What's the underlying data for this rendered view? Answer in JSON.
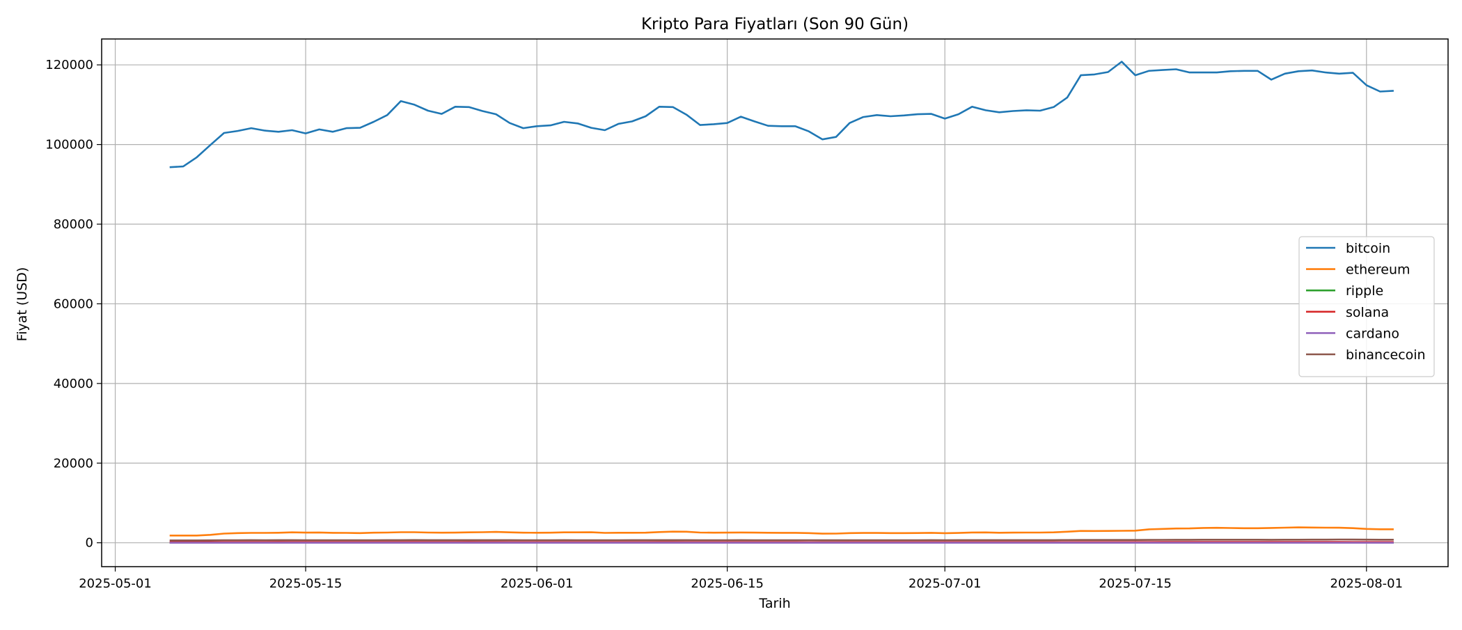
{
  "chart_data": {
    "type": "line",
    "title": "Kripto Para Fiyatları (Son 90 Gün)",
    "xlabel": "Tarih",
    "ylabel": "Fiyat (USD)",
    "x_ticks": [
      "2025-05-01",
      "2025-05-15",
      "2025-06-01",
      "2025-06-15",
      "2025-07-01",
      "2025-07-15",
      "2025-08-01"
    ],
    "y_ticks": [
      0,
      20000,
      40000,
      60000,
      80000,
      100000,
      120000
    ],
    "xlim": [
      "2025-04-30",
      "2025-08-07"
    ],
    "ylim": [
      -6000,
      126500
    ],
    "grid": true,
    "legend_position": "center-right",
    "dates": [
      "2025-05-05",
      "2025-05-06",
      "2025-05-07",
      "2025-05-08",
      "2025-05-09",
      "2025-05-10",
      "2025-05-11",
      "2025-05-12",
      "2025-05-13",
      "2025-05-14",
      "2025-05-15",
      "2025-05-16",
      "2025-05-17",
      "2025-05-18",
      "2025-05-19",
      "2025-05-20",
      "2025-05-21",
      "2025-05-22",
      "2025-05-23",
      "2025-05-24",
      "2025-05-25",
      "2025-05-26",
      "2025-05-27",
      "2025-05-28",
      "2025-05-29",
      "2025-05-30",
      "2025-05-31",
      "2025-06-01",
      "2025-06-02",
      "2025-06-03",
      "2025-06-04",
      "2025-06-05",
      "2025-06-06",
      "2025-06-07",
      "2025-06-08",
      "2025-06-09",
      "2025-06-10",
      "2025-06-11",
      "2025-06-12",
      "2025-06-13",
      "2025-06-14",
      "2025-06-15",
      "2025-06-16",
      "2025-06-17",
      "2025-06-18",
      "2025-06-19",
      "2025-06-20",
      "2025-06-21",
      "2025-06-22",
      "2025-06-23",
      "2025-06-24",
      "2025-06-25",
      "2025-06-26",
      "2025-06-27",
      "2025-06-28",
      "2025-06-29",
      "2025-06-30",
      "2025-07-01",
      "2025-07-02",
      "2025-07-03",
      "2025-07-04",
      "2025-07-05",
      "2025-07-06",
      "2025-07-07",
      "2025-07-08",
      "2025-07-09",
      "2025-07-10",
      "2025-07-11",
      "2025-07-12",
      "2025-07-13",
      "2025-07-14",
      "2025-07-15",
      "2025-07-16",
      "2025-07-17",
      "2025-07-18",
      "2025-07-19",
      "2025-07-20",
      "2025-07-21",
      "2025-07-22",
      "2025-07-23",
      "2025-07-24",
      "2025-07-25",
      "2025-07-26",
      "2025-07-27",
      "2025-07-28",
      "2025-07-29",
      "2025-07-30",
      "2025-07-31",
      "2025-08-01",
      "2025-08-02",
      "2025-08-03"
    ],
    "series": [
      {
        "name": "bitcoin",
        "color": "#1f77b4",
        "values": [
          94300,
          94500,
          96800,
          99900,
          102900,
          103400,
          104100,
          103500,
          103200,
          103600,
          102800,
          103800,
          103200,
          104100,
          104200,
          105700,
          107400,
          110900,
          110000,
          108500,
          107700,
          109500,
          109400,
          108400,
          107600,
          105400,
          104100,
          104600,
          104800,
          105700,
          105300,
          104200,
          103600,
          105200,
          105800,
          107100,
          109500,
          109400,
          107500,
          104900,
          105100,
          105400,
          107000,
          105800,
          104700,
          104600,
          104600,
          103300,
          101300,
          101900,
          105400,
          106900,
          107400,
          107100,
          107300,
          107600,
          107700,
          106500,
          107600,
          109500,
          108600,
          108100,
          108400,
          108600,
          108500,
          109400,
          111800,
          117400,
          117600,
          118200,
          120800,
          117400,
          118500,
          118700,
          118900,
          118100,
          118100,
          118100,
          118400,
          118500,
          118500,
          116300,
          117800,
          118400,
          118600,
          118100,
          117800,
          118000,
          114900,
          113300,
          113500
        ]
      },
      {
        "name": "ethereum",
        "color": "#ff7f0e",
        "values": [
          1820,
          1810,
          1820,
          1980,
          2300,
          2420,
          2480,
          2480,
          2520,
          2610,
          2550,
          2590,
          2500,
          2470,
          2420,
          2530,
          2560,
          2650,
          2660,
          2570,
          2530,
          2550,
          2620,
          2660,
          2730,
          2610,
          2530,
          2510,
          2530,
          2610,
          2620,
          2630,
          2480,
          2520,
          2510,
          2530,
          2680,
          2800,
          2770,
          2570,
          2530,
          2540,
          2580,
          2540,
          2510,
          2500,
          2500,
          2420,
          2280,
          2300,
          2430,
          2460,
          2460,
          2420,
          2430,
          2440,
          2500,
          2410,
          2460,
          2580,
          2600,
          2510,
          2550,
          2560,
          2560,
          2620,
          2780,
          2970,
          2950,
          2960,
          3000,
          3030,
          3370,
          3480,
          3580,
          3590,
          3720,
          3760,
          3710,
          3650,
          3650,
          3720,
          3790,
          3860,
          3830,
          3790,
          3780,
          3660,
          3470,
          3390,
          3380
        ]
      },
      {
        "name": "ripple",
        "color": "#2ca02c",
        "values": [
          2.1,
          2.1,
          2.1,
          2.3,
          2.4,
          2.4,
          2.4,
          2.4,
          2.5,
          2.6,
          2.4,
          2.4,
          2.4,
          2.4,
          2.4,
          2.4,
          2.4,
          2.4,
          2.4,
          2.3,
          2.3,
          2.3,
          2.3,
          2.3,
          2.3,
          2.2,
          2.2,
          2.2,
          2.2,
          2.2,
          2.2,
          2.2,
          2.2,
          2.2,
          2.2,
          2.3,
          2.3,
          2.3,
          2.3,
          2.2,
          2.2,
          2.2,
          2.2,
          2.2,
          2.2,
          2.2,
          2.2,
          2.1,
          2.0,
          2.0,
          2.1,
          2.1,
          2.1,
          2.1,
          2.2,
          2.2,
          2.2,
          2.2,
          2.2,
          2.2,
          2.2,
          2.2,
          2.3,
          2.3,
          2.3,
          2.4,
          2.6,
          2.8,
          2.8,
          2.8,
          2.9,
          2.9,
          3.1,
          3.5,
          3.4,
          3.4,
          3.5,
          3.5,
          3.4,
          3.3,
          3.2,
          3.2,
          3.2,
          3.2,
          3.2,
          3.1,
          3.1,
          3.1,
          3.0,
          3.0,
          3.0
        ]
      },
      {
        "name": "solana",
        "color": "#d62728",
        "values": [
          146,
          145,
          148,
          155,
          170,
          175,
          172,
          174,
          180,
          177,
          170,
          172,
          166,
          170,
          166,
          168,
          172,
          178,
          180,
          176,
          172,
          178,
          180,
          176,
          170,
          160,
          158,
          155,
          155,
          160,
          158,
          152,
          150,
          155,
          152,
          158,
          163,
          165,
          160,
          150,
          152,
          155,
          158,
          152,
          148,
          146,
          146,
          140,
          132,
          138,
          145,
          150,
          152,
          150,
          152,
          152,
          152,
          150,
          150,
          152,
          150,
          148,
          150,
          152,
          152,
          156,
          160,
          165,
          165,
          166,
          168,
          170,
          178,
          185,
          188,
          190,
          194,
          196,
          194,
          190,
          188,
          185,
          188,
          190,
          188,
          185,
          180,
          178,
          170,
          165,
          165
        ]
      },
      {
        "name": "cardano",
        "color": "#9467bd",
        "values": [
          0.67,
          0.67,
          0.68,
          0.72,
          0.78,
          0.8,
          0.79,
          0.78,
          0.8,
          0.8,
          0.78,
          0.78,
          0.76,
          0.77,
          0.75,
          0.76,
          0.77,
          0.79,
          0.8,
          0.78,
          0.76,
          0.77,
          0.76,
          0.74,
          0.73,
          0.7,
          0.69,
          0.68,
          0.68,
          0.69,
          0.68,
          0.67,
          0.66,
          0.66,
          0.66,
          0.68,
          0.7,
          0.7,
          0.68,
          0.64,
          0.64,
          0.64,
          0.65,
          0.63,
          0.61,
          0.6,
          0.6,
          0.58,
          0.55,
          0.56,
          0.59,
          0.6,
          0.58,
          0.57,
          0.58,
          0.58,
          0.59,
          0.58,
          0.58,
          0.59,
          0.59,
          0.58,
          0.58,
          0.59,
          0.59,
          0.62,
          0.66,
          0.72,
          0.73,
          0.74,
          0.76,
          0.78,
          0.82,
          0.87,
          0.86,
          0.84,
          0.86,
          0.88,
          0.87,
          0.85,
          0.84,
          0.83,
          0.82,
          0.83,
          0.82,
          0.8,
          0.78,
          0.77,
          0.74,
          0.72,
          0.72
        ]
      },
      {
        "name": "binancecoin",
        "color": "#8c564b",
        "values": [
          590,
          590,
          595,
          610,
          640,
          650,
          652,
          650,
          655,
          660,
          650,
          648,
          645,
          648,
          648,
          650,
          655,
          665,
          672,
          665,
          660,
          662,
          668,
          665,
          660,
          655,
          650,
          648,
          650,
          652,
          650,
          648,
          645,
          650,
          652,
          655,
          660,
          665,
          660,
          645,
          648,
          650,
          652,
          648,
          645,
          642,
          640,
          635,
          625,
          630,
          640,
          645,
          648,
          646,
          648,
          650,
          652,
          650,
          652,
          655,
          660,
          658,
          660,
          662,
          662,
          665,
          680,
          690,
          692,
          692,
          690,
          695,
          720,
          735,
          740,
          745,
          760,
          770,
          768,
          765,
          760,
          755,
          760,
          770,
          775,
          790,
          810,
          800,
          780,
          765,
          760
        ]
      }
    ]
  }
}
